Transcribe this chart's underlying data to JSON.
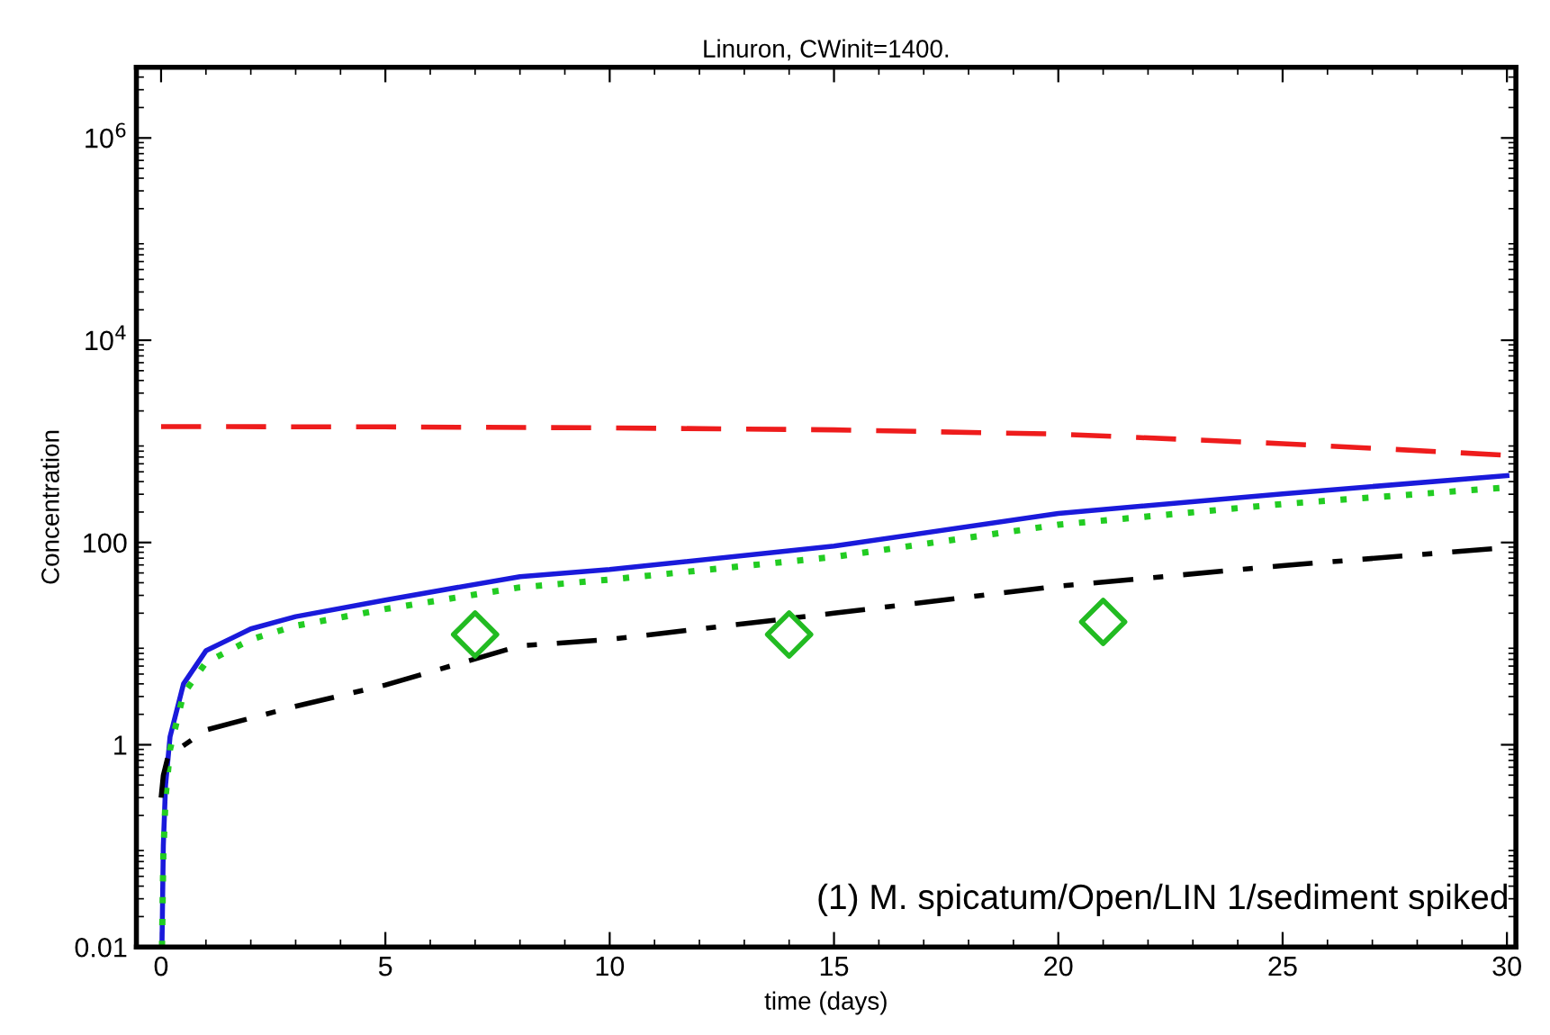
{
  "chart_data": {
    "type": "line",
    "title": "Linuron, CWinit=1400.",
    "xlabel": "time (days)",
    "ylabel": "Concentration",
    "log": "y",
    "xlim": [
      -0.55,
      30.2
    ],
    "xticks": [
      0,
      5,
      10,
      15,
      20,
      25,
      30
    ],
    "ylim": [
      0.01,
      5000000
    ],
    "yticks": [
      0.01,
      1,
      100,
      {
        "value": 10000,
        "label": "10$^{4}$"
      },
      {
        "value": 1000000,
        "label": "10$^{6}$"
      }
    ],
    "grid": false,
    "legend": false,
    "annotations": [
      "(1) M. spicatum/Open/LIN 1/sediment spiked"
    ],
    "series": [
      {
        "color": "#ee1c1c",
        "line_style": "dashed",
        "x": [
          0,
          5,
          10,
          15,
          20,
          25,
          30
        ],
        "values": [
          1400,
          1390,
          1360,
          1300,
          1180,
          950,
          730
        ]
      },
      {
        "color": "#1a1adb",
        "line_style": "solid",
        "x": [
          0.02,
          0.05,
          0.1,
          0.2,
          0.5,
          1,
          2,
          3,
          5,
          8,
          10,
          15,
          20,
          25,
          30
        ],
        "values": [
          0.01,
          0.1,
          0.4,
          1.2,
          4,
          8.5,
          14,
          18.5,
          27,
          46,
          54,
          92,
          194,
          303,
          458
        ]
      },
      {
        "color": "#22cc22",
        "line_style": "dotted",
        "x": [
          0.02,
          0.05,
          0.1,
          0.2,
          0.5,
          1,
          2,
          3,
          5,
          8,
          10,
          15,
          20,
          25,
          30
        ],
        "values": [
          0.01,
          0.08,
          0.3,
          0.9,
          3.2,
          6.5,
          11,
          15,
          22,
          36,
          43,
          72,
          150,
          240,
          350
        ]
      },
      {
        "color": "#000000",
        "line_style": "dashdot",
        "x": [
          0,
          0.05,
          0.15,
          0.3,
          1,
          3,
          5,
          8,
          10,
          15,
          20,
          25,
          30
        ],
        "values": [
          0.3,
          0.5,
          0.75,
          0.85,
          1.4,
          2.4,
          3.9,
          9.5,
          11,
          20,
          37,
          59,
          89
        ]
      },
      {
        "type": "scatter",
        "color": "#22bb22",
        "marker": "diamond",
        "x": [
          7,
          14,
          21
        ],
        "values": [
          12.3,
          12.3,
          16.4
        ]
      }
    ]
  }
}
